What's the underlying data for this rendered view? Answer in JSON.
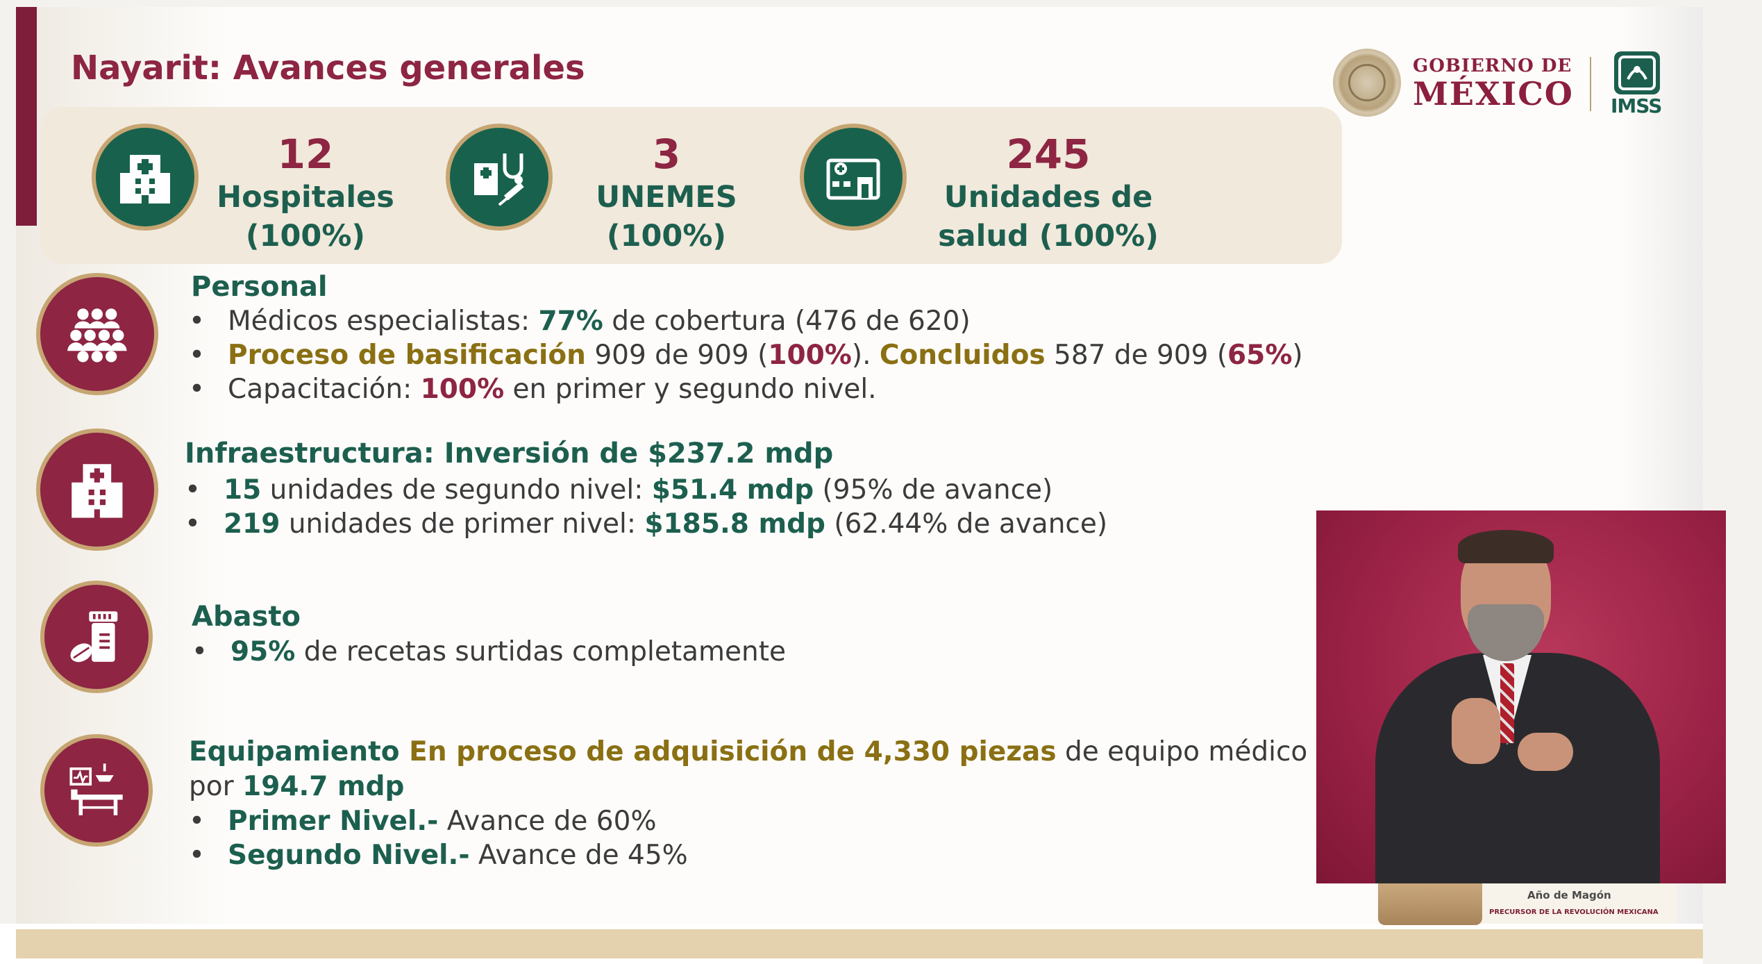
{
  "title": "Nayarit: Avances generales",
  "header": {
    "gobierno_line1": "GOBIERNO DE",
    "gobierno_line2": "MÉXICO",
    "imss": "IMSS"
  },
  "stats": [
    {
      "number": "12",
      "label1": "Hospitales",
      "label2": "(100%)",
      "icon": "hospital-icon"
    },
    {
      "number": "3",
      "label1": "UNEMES",
      "label2": "(100%)",
      "icon": "medical-unit-icon"
    },
    {
      "number": "245",
      "label1": "Unidades de",
      "label2": "salud (100%)",
      "icon": "health-unit-icon"
    }
  ],
  "personal": {
    "title": "Personal",
    "l1": {
      "a": "Médicos especialistas: ",
      "b": "77%",
      "c": " de cobertura (476 de 620)"
    },
    "l2": {
      "a": "Proceso de basificación",
      "b": " 909 de 909 (",
      "c": "100%",
      "d": "). ",
      "e": "Concluidos",
      "f": " 587 de 909 (",
      "g": "65%",
      "h": ")"
    },
    "l3": {
      "a": "Capacitación: ",
      "b": "100%",
      "c": " en primer y segundo nivel."
    }
  },
  "infra": {
    "title": "Infraestructura: Inversión de $237.2 mdp",
    "l1": {
      "a": "15",
      "b": " unidades de segundo nivel: ",
      "c": "$51.4 mdp",
      "d": " (95% de avance)"
    },
    "l2": {
      "a": "219",
      "b": " unidades de primer nivel: ",
      "c": "$185.8 mdp",
      "d": " (62.44% de avance)"
    }
  },
  "abasto": {
    "title": "Abasto",
    "l1": {
      "a": "95%",
      "b": " de recetas surtidas completamente"
    }
  },
  "equip": {
    "title": "Equipamiento",
    "l1": {
      "a": " En proceso de adquisición de 4,330 piezas",
      "b": " de equipo médico"
    },
    "l2": {
      "a": "por ",
      "b": "194.7 mdp"
    },
    "l3": {
      "a": "Primer Nivel.-",
      "b": " Avance de 60%"
    },
    "l4": {
      "a": "Segundo Nivel.-",
      "b": " Avance de 45%"
    }
  },
  "banner": {
    "anio": "Año de Magón",
    "sub": "PRECURSOR DE LA REVOLUCIÓN MEXICANA"
  },
  "colors": {
    "maroon": "#8d2543",
    "green": "#1d5f4f",
    "gold": "#c6a572",
    "olive": "#8a7013"
  }
}
